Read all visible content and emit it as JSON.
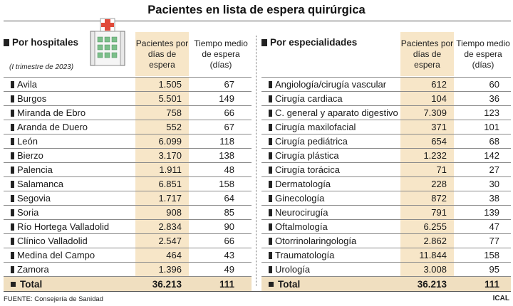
{
  "title": "Pacientes en lista de espera quirúrgica",
  "left": {
    "heading": "Por hospitales",
    "note": "(I trimestre de 2023)",
    "col_pacientes": "Pacientes por días de espera",
    "col_tiempo": "Tiempo medio de espera (días)",
    "rows": [
      {
        "name": "Avila",
        "pacientes": "1.505",
        "tiempo": "67"
      },
      {
        "name": "Burgos",
        "pacientes": "5.501",
        "tiempo": "149"
      },
      {
        "name": "Miranda de Ebro",
        "pacientes": "758",
        "tiempo": "66"
      },
      {
        "name": "Aranda de Duero",
        "pacientes": "552",
        "tiempo": "67"
      },
      {
        "name": "León",
        "pacientes": "6.099",
        "tiempo": "118"
      },
      {
        "name": "Bierzo",
        "pacientes": "3.170",
        "tiempo": "138"
      },
      {
        "name": "Palencia",
        "pacientes": "1.911",
        "tiempo": "48"
      },
      {
        "name": "Salamanca",
        "pacientes": "6.851",
        "tiempo": "158"
      },
      {
        "name": "Segovia",
        "pacientes": "1.717",
        "tiempo": "64"
      },
      {
        "name": "Soria",
        "pacientes": "908",
        "tiempo": "85"
      },
      {
        "name": "Río Hortega Valladolid",
        "pacientes": "2.834",
        "tiempo": "90"
      },
      {
        "name": "Clínico Valladolid",
        "pacientes": "2.547",
        "tiempo": "66"
      },
      {
        "name": "Medina del Campo",
        "pacientes": "464",
        "tiempo": "43"
      },
      {
        "name": "Zamora",
        "pacientes": "1.396",
        "tiempo": "49"
      }
    ],
    "total": {
      "name": "Total",
      "pacientes": "36.213",
      "tiempo": "111"
    }
  },
  "right": {
    "heading": "Por especialidades",
    "col_pacientes": "Pacientes por días de espera",
    "col_tiempo": "Tiempo medio de espera (días)",
    "rows": [
      {
        "name": "Angiología/cirugía vascular",
        "pacientes": "612",
        "tiempo": "60"
      },
      {
        "name": "Cirugía cardiaca",
        "pacientes": "104",
        "tiempo": "36"
      },
      {
        "name": "C. general y aparato digestivo",
        "pacientes": "7.309",
        "tiempo": "123"
      },
      {
        "name": "Cirugía maxilofacial",
        "pacientes": "371",
        "tiempo": "101"
      },
      {
        "name": "Cirugía pediátrica",
        "pacientes": "654",
        "tiempo": "68"
      },
      {
        "name": "Cirugía plástica",
        "pacientes": "1.232",
        "tiempo": "142"
      },
      {
        "name": "Cirugía torácica",
        "pacientes": "71",
        "tiempo": "27"
      },
      {
        "name": "Dermatología",
        "pacientes": "228",
        "tiempo": "30"
      },
      {
        "name": "Ginecología",
        "pacientes": "872",
        "tiempo": "38"
      },
      {
        "name": "Neurocirugía",
        "pacientes": "791",
        "tiempo": "139"
      },
      {
        "name": "Oftalmología",
        "pacientes": "6.255",
        "tiempo": "47"
      },
      {
        "name": "Otorrinolaringología",
        "pacientes": "2.862",
        "tiempo": "77"
      },
      {
        "name": "Traumatología",
        "pacientes": "11.844",
        "tiempo": "158"
      },
      {
        "name": "Urología",
        "pacientes": "3.008",
        "tiempo": "95"
      }
    ],
    "total": {
      "name": "Total",
      "pacientes": "36.213",
      "tiempo": "111"
    }
  },
  "footer": {
    "source": "FUENTE: Consejería de Sanidad",
    "brand": "ICAL"
  },
  "icons": {
    "hospital": "hospital-building-icon"
  },
  "colors": {
    "highlight": "#f7e6c8",
    "cross": "#e04a3a",
    "building": "#7bbf8a"
  }
}
